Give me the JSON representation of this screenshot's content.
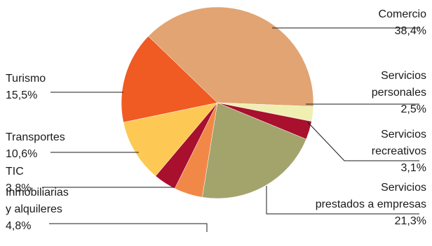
{
  "chart_data": {
    "type": "pie",
    "title": "",
    "unit": "%",
    "slices": [
      {
        "label_lines": [
          "Comercio"
        ],
        "value_text": "38,4%",
        "value": 38.4,
        "color": "#e1a472"
      },
      {
        "label_lines": [
          "Servicios",
          "personales"
        ],
        "value_text": "2,5%",
        "value": 2.5,
        "color": "#eeefb0"
      },
      {
        "label_lines": [
          "Servicios",
          "recreativos"
        ],
        "value_text": "3,1%",
        "value": 3.1,
        "color": "#a8102e"
      },
      {
        "label_lines": [
          "Servicios",
          "prestados a empresas"
        ],
        "value_text": "21,3%",
        "value": 21.3,
        "color": "#a3a36c"
      },
      {
        "label_lines": [
          "Inmobiliarias",
          "y alquileres"
        ],
        "value_text": "4,8%",
        "value": 4.8,
        "color": "#f28847"
      },
      {
        "label_lines": [
          "TIC"
        ],
        "value_text": "3,8%",
        "value": 3.8,
        "color": "#a8102e"
      },
      {
        "label_lines": [
          "Transportes"
        ],
        "value_text": "10,6%",
        "value": 10.6,
        "color": "#fdc954"
      },
      {
        "label_lines": [
          "Turismo"
        ],
        "value_text": "15,5%",
        "value": 15.5,
        "color": "#f05a23"
      }
    ]
  }
}
